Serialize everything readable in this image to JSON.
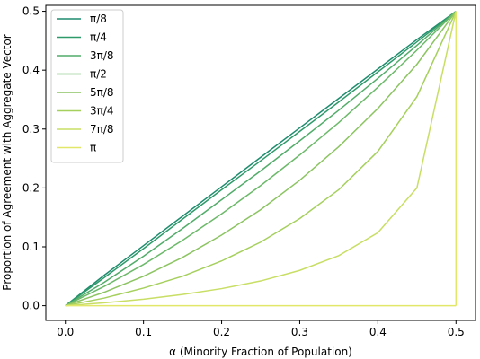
{
  "chart_data": {
    "type": "line",
    "xlabel": "α (Minority Fraction of Population)",
    "ylabel": "Proportion of Agreement with Aggregate Vector",
    "xlim": [
      -0.025,
      0.525
    ],
    "ylim": [
      -0.025,
      0.51
    ],
    "xticks": [
      0.0,
      0.1,
      0.2,
      0.3,
      0.4,
      0.5
    ],
    "xtick_labels": [
      "0.0",
      "0.1",
      "0.2",
      "0.3",
      "0.4",
      "0.5"
    ],
    "yticks": [
      0.0,
      0.1,
      0.2,
      0.3,
      0.4,
      0.5
    ],
    "ytick_labels": [
      "0.0",
      "0.1",
      "0.2",
      "0.3",
      "0.4",
      "0.5"
    ],
    "grid": false,
    "legend_position": "top-left",
    "x": [
      0.0,
      0.05,
      0.1,
      0.15,
      0.2,
      0.25,
      0.3,
      0.35,
      0.4,
      0.45,
      0.5
    ],
    "series": [
      {
        "name": "π/8",
        "color": "#1e8c6e",
        "values": [
          0.0,
          0.052,
          0.102,
          0.152,
          0.202,
          0.252,
          0.302,
          0.352,
          0.402,
          0.452,
          0.5
        ]
      },
      {
        "name": "π/4",
        "color": "#2e9a6a",
        "values": [
          0.0,
          0.048,
          0.097,
          0.147,
          0.197,
          0.246,
          0.296,
          0.346,
          0.397,
          0.448,
          0.5
        ]
      },
      {
        "name": "3π/8",
        "color": "#52ac6a",
        "values": [
          0.0,
          0.04,
          0.084,
          0.131,
          0.18,
          0.229,
          0.28,
          0.332,
          0.386,
          0.442,
          0.5
        ]
      },
      {
        "name": "π/2",
        "color": "#6cb96a",
        "values": [
          0.0,
          0.033,
          0.07,
          0.111,
          0.156,
          0.204,
          0.256,
          0.311,
          0.371,
          0.434,
          0.5
        ]
      },
      {
        "name": "5π/8",
        "color": "#8cc462",
        "values": [
          0.0,
          0.023,
          0.05,
          0.082,
          0.12,
          0.163,
          0.213,
          0.27,
          0.335,
          0.41,
          0.5
        ]
      },
      {
        "name": "3π/4",
        "color": "#a6d05e",
        "values": [
          0.0,
          0.013,
          0.03,
          0.05,
          0.076,
          0.108,
          0.148,
          0.197,
          0.262,
          0.355,
          0.5
        ]
      },
      {
        "name": "7π/8",
        "color": "#c8de64",
        "values": [
          0.0,
          0.005,
          0.011,
          0.019,
          0.029,
          0.042,
          0.06,
          0.085,
          0.124,
          0.2,
          0.5
        ]
      },
      {
        "name": "π",
        "color": "#e2e76a",
        "values": [
          0.0,
          0.0,
          0.0,
          0.0,
          0.0,
          0.0,
          0.0,
          0.0,
          0.0,
          0.0,
          0.0
        ]
      }
    ],
    "pi_vertical_segment": {
      "x": 0.5,
      "y_from": 0.0,
      "y_to": 0.5
    }
  }
}
